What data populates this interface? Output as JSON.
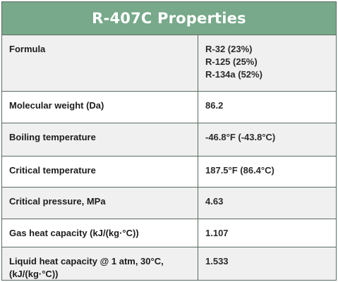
{
  "title": "R-407C Properties",
  "rows": [
    {
      "name": "Formula",
      "values": [
        "R-32 (23%)",
        "R-125 (25%)",
        "R-134a (52%)"
      ]
    },
    {
      "name": "Molecular weight (Da)",
      "values": [
        "86.2"
      ]
    },
    {
      "name": "Boiling temperature",
      "values": [
        "-46.8°F (-43.8°C)"
      ]
    },
    {
      "name": "Critical temperature",
      "values": [
        "187.5°F (86.4°C)"
      ]
    },
    {
      "name": "Critical pressure, MPa",
      "values": [
        "4.63"
      ]
    },
    {
      "name": "Gas heat capacity (kJ/(kg·°C))",
      "values": [
        "1.107"
      ]
    },
    {
      "name": "Liquid heat capacity @ 1 atm, 30°C, (kJ/(kg·°C))",
      "values": [
        "1.533"
      ]
    }
  ],
  "colors": {
    "header_bg": "#77a98a",
    "header_text": "#ffffff",
    "row_shaded": "#f0f0f0",
    "row_plain": "#ffffff",
    "border": "#5a6b60"
  }
}
